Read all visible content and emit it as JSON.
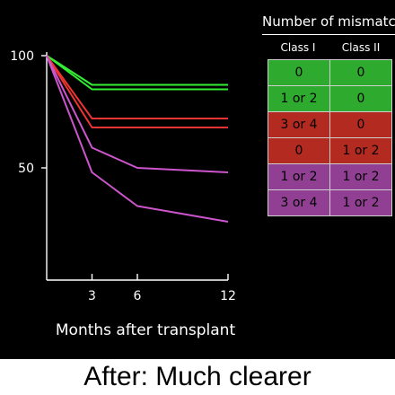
{
  "chart_data": {
    "type": "line",
    "x": [
      0,
      3,
      6,
      12
    ],
    "xticks": [
      3,
      6,
      12
    ],
    "yticks": [
      50,
      100
    ],
    "xlabel": "Months after transplant",
    "ylabel": "",
    "xlim": [
      0,
      12
    ],
    "ylim": [
      0,
      100
    ],
    "series": [
      {
        "color": "#33ee33",
        "values": [
          100,
          87,
          87,
          87
        ]
      },
      {
        "color": "#33ee33",
        "values": [
          100,
          85,
          85,
          85
        ]
      },
      {
        "color": "#ee3333",
        "values": [
          100,
          72,
          72,
          72
        ]
      },
      {
        "color": "#ee3333",
        "values": [
          100,
          68,
          68,
          68
        ]
      },
      {
        "color": "#cc55cc",
        "values": [
          100,
          59,
          50,
          48
        ]
      },
      {
        "color": "#cc55cc",
        "values": [
          100,
          48,
          33,
          26
        ]
      }
    ]
  },
  "table": {
    "title": "Number of mismatches",
    "columns": [
      "Class I",
      "Class II"
    ],
    "rows": [
      {
        "color": "#2eab2e",
        "cells": [
          "0",
          "0"
        ]
      },
      {
        "color": "#2eab2e",
        "cells": [
          "1 or 2",
          "0"
        ]
      },
      {
        "color": "#b22a20",
        "cells": [
          "3 or 4",
          "0"
        ]
      },
      {
        "color": "#b22a20",
        "cells": [
          "0",
          "1 or 2"
        ]
      },
      {
        "color": "#913f93",
        "cells": [
          "1 or 2",
          "1 or 2"
        ]
      },
      {
        "color": "#913f93",
        "cells": [
          "3 or 4",
          "1 or 2"
        ]
      }
    ]
  },
  "caption": "After: Much clearer"
}
